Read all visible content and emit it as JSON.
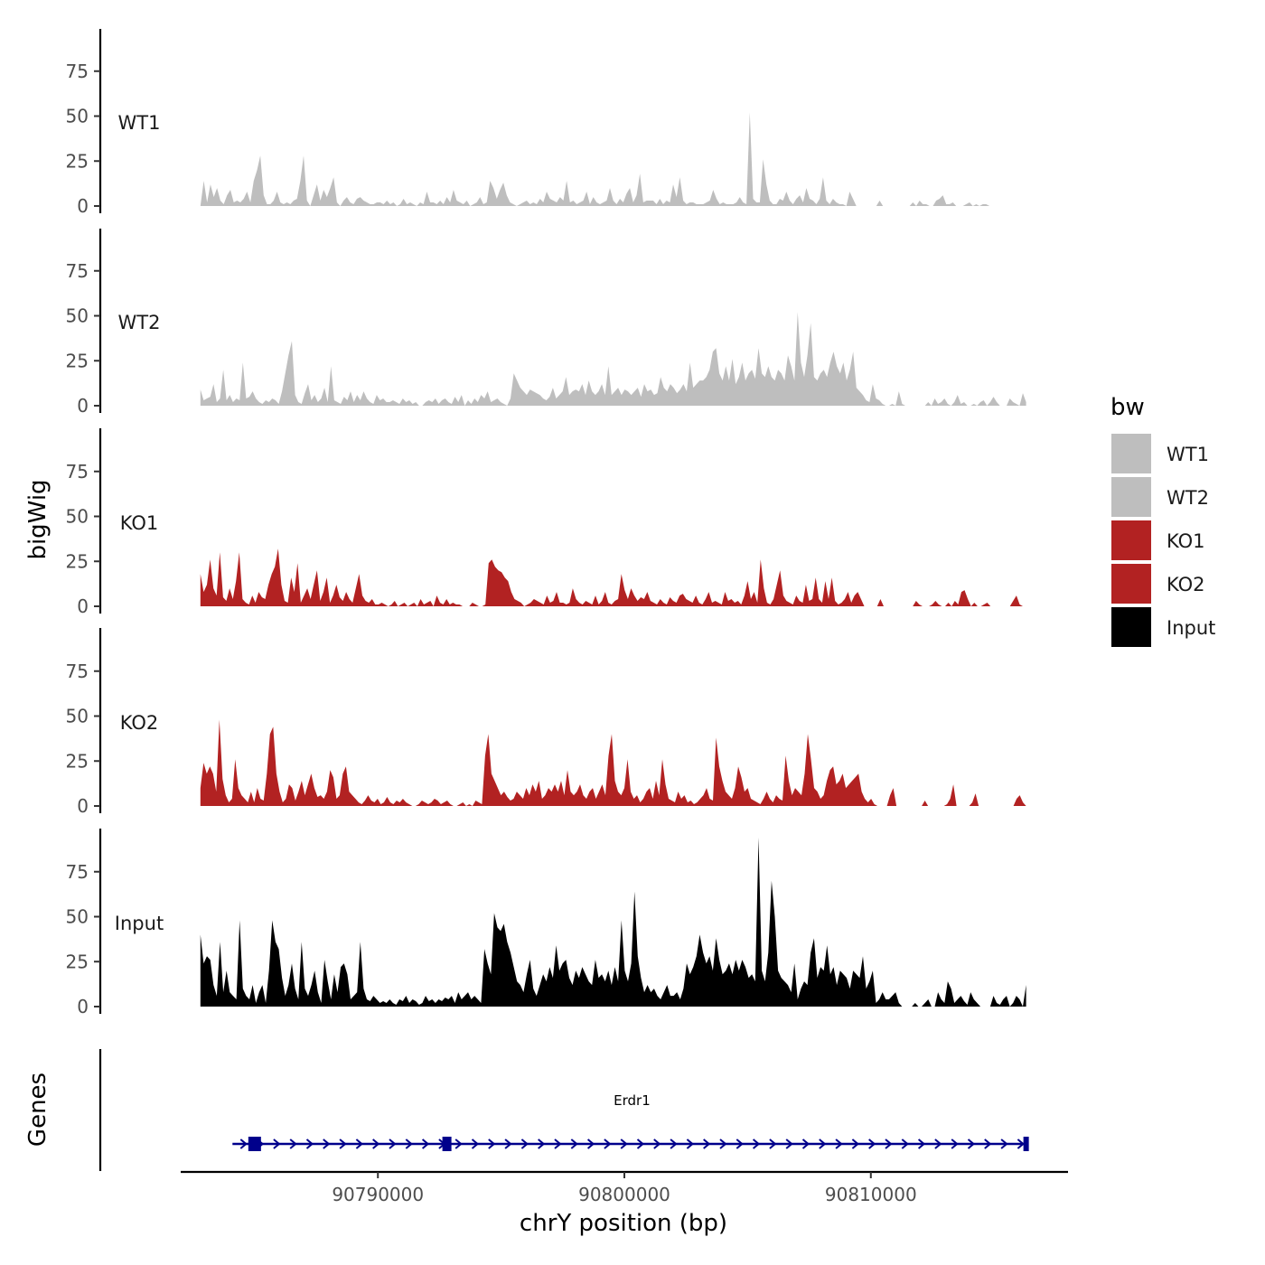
{
  "chart_data": {
    "type": "area",
    "title": "",
    "xlabel": "chrY position (bp)",
    "ylabel": "bigWig",
    "xlim": [
      90782000,
      90818000
    ],
    "x_ticks": [
      90790000,
      90800000,
      90810000
    ],
    "x_tick_labels": [
      "90790000",
      "90800000",
      "90810000"
    ],
    "ylim": [
      0,
      100
    ],
    "y_ticks": [
      0,
      25,
      50,
      75
    ],
    "y_tick_labels": [
      "0",
      "25",
      "50",
      "75"
    ],
    "data_x_range": [
      90782800,
      90816300
    ],
    "colors": {
      "WT1": "#bebebe",
      "WT2": "#bebebe",
      "KO1": "#b22222",
      "KO2": "#b22222",
      "Input": "#000000",
      "gene": "#00008b"
    },
    "series": [
      {
        "name": "WT1",
        "label": "WT1",
        "color": "#bebebe",
        "values": [
          0,
          14,
          2,
          12,
          5,
          10,
          3,
          1,
          6,
          9,
          2,
          3,
          2,
          4,
          8,
          2,
          14,
          20,
          28,
          6,
          1,
          1,
          3,
          8,
          2,
          1,
          2,
          1,
          3,
          4,
          14,
          28,
          3,
          0,
          6,
          12,
          3,
          9,
          5,
          10,
          16,
          2,
          0,
          3,
          5,
          2,
          1,
          4,
          5,
          3,
          2,
          1,
          1,
          2,
          2,
          1,
          3,
          1,
          2,
          0,
          1,
          4,
          1,
          2,
          1,
          0,
          2,
          1,
          8,
          2,
          2,
          1,
          3,
          1,
          5,
          2,
          9,
          3,
          2,
          1,
          3,
          0,
          1,
          2,
          5,
          1,
          2,
          14,
          10,
          4,
          9,
          13,
          6,
          2,
          1,
          0,
          1,
          2,
          3,
          1,
          2,
          1,
          4,
          2,
          8,
          4,
          3,
          2,
          5,
          3,
          14,
          2,
          3,
          1,
          2,
          3,
          8,
          1,
          5,
          2,
          1,
          2,
          3,
          10,
          3,
          1,
          4,
          2,
          7,
          10,
          2,
          6,
          18,
          2,
          3,
          3,
          3,
          1,
          4,
          1,
          3,
          2,
          12,
          5,
          16,
          3,
          1,
          2,
          2,
          1,
          1,
          1,
          2,
          3,
          9,
          4,
          1,
          2,
          1,
          1,
          1,
          2,
          5,
          2,
          1,
          52,
          4,
          2,
          2,
          26,
          12,
          3,
          1,
          1,
          4,
          3,
          8,
          3,
          1,
          4,
          6,
          2,
          10,
          4,
          3,
          1,
          4,
          16,
          3,
          1,
          4,
          2,
          1,
          1,
          0,
          8,
          4,
          0,
          0,
          0,
          0,
          0,
          0,
          0,
          3,
          0,
          0,
          0,
          0,
          0,
          0,
          0,
          0,
          0,
          2,
          0,
          3,
          1,
          1,
          0,
          0,
          3,
          4,
          6,
          1,
          1,
          2,
          0,
          0,
          0,
          1,
          2,
          0,
          1,
          0,
          1,
          1,
          0,
          0,
          0,
          0,
          0,
          0,
          0,
          0,
          0,
          0,
          0,
          0
        ]
      },
      {
        "name": "WT2",
        "label": "WT2",
        "color": "#bebebe",
        "values": [
          9,
          3,
          4,
          5,
          12,
          2,
          4,
          20,
          3,
          6,
          2,
          4,
          3,
          24,
          4,
          5,
          8,
          4,
          2,
          1,
          3,
          2,
          4,
          3,
          1,
          8,
          18,
          28,
          36,
          6,
          2,
          1,
          7,
          12,
          3,
          6,
          2,
          4,
          10,
          2,
          22,
          3,
          2,
          1,
          5,
          3,
          8,
          2,
          6,
          3,
          8,
          4,
          2,
          1,
          6,
          3,
          4,
          2,
          2,
          3,
          2,
          1,
          4,
          2,
          3,
          1,
          2,
          0,
          0,
          2,
          3,
          2,
          4,
          1,
          3,
          4,
          2,
          1,
          5,
          2,
          6,
          0,
          3,
          1,
          4,
          2,
          6,
          4,
          8,
          2,
          3,
          4,
          2,
          1,
          0,
          4,
          18,
          14,
          10,
          8,
          6,
          9,
          8,
          7,
          6,
          4,
          3,
          5,
          10,
          4,
          6,
          8,
          16,
          6,
          8,
          9,
          8,
          12,
          6,
          14,
          8,
          6,
          8,
          12,
          6,
          22,
          6,
          8,
          10,
          6,
          9,
          8,
          6,
          8,
          10,
          5,
          12,
          8,
          9,
          6,
          7,
          16,
          10,
          8,
          12,
          10,
          7,
          9,
          12,
          8,
          24,
          10,
          12,
          14,
          14,
          16,
          20,
          30,
          32,
          18,
          14,
          22,
          14,
          26,
          12,
          16,
          24,
          14,
          18,
          20,
          15,
          32,
          18,
          16,
          22,
          16,
          14,
          20,
          18,
          14,
          28,
          22,
          14,
          52,
          24,
          16,
          28,
          46,
          16,
          14,
          18,
          20,
          16,
          24,
          30,
          22,
          18,
          24,
          14,
          20,
          30,
          10,
          8,
          6,
          3,
          2,
          12,
          4,
          3,
          1,
          0,
          0,
          1,
          0,
          8,
          1,
          0,
          0,
          0,
          0,
          0,
          0,
          0,
          2,
          0,
          4,
          1,
          2,
          4,
          1,
          0,
          2,
          6,
          1,
          2,
          0,
          0,
          1,
          0,
          2,
          3,
          0,
          2,
          5,
          2,
          0,
          0,
          0,
          4,
          2,
          1,
          0,
          7,
          2
        ]
      },
      {
        "name": "KO1",
        "label": "KO1",
        "color": "#b22222",
        "values": [
          18,
          8,
          12,
          26,
          10,
          6,
          30,
          5,
          3,
          10,
          4,
          14,
          30,
          4,
          2,
          1,
          6,
          2,
          8,
          5,
          4,
          12,
          18,
          22,
          32,
          12,
          3,
          2,
          16,
          8,
          24,
          2,
          6,
          10,
          4,
          12,
          20,
          3,
          8,
          16,
          2,
          6,
          12,
          5,
          3,
          8,
          4,
          2,
          10,
          18,
          6,
          3,
          2,
          4,
          1,
          1,
          2,
          1,
          0,
          1,
          3,
          0,
          1,
          2,
          0,
          1,
          2,
          0,
          4,
          1,
          2,
          3,
          0,
          6,
          2,
          1,
          4,
          1,
          2,
          1,
          1,
          0,
          0,
          0,
          2,
          1,
          0,
          0,
          1,
          24,
          26,
          22,
          20,
          19,
          16,
          14,
          8,
          4,
          3,
          2,
          0,
          1,
          2,
          4,
          3,
          2,
          1,
          6,
          2,
          3,
          8,
          2,
          2,
          1,
          2,
          10,
          4,
          2,
          1,
          3,
          2,
          1,
          6,
          1,
          3,
          8,
          2,
          1,
          3,
          4,
          18,
          9,
          4,
          10,
          6,
          3,
          5,
          4,
          8,
          3,
          2,
          1,
          4,
          2,
          1,
          5,
          3,
          2,
          6,
          7,
          4,
          3,
          2,
          6,
          2,
          1,
          4,
          8,
          2,
          3,
          2,
          1,
          8,
          3,
          4,
          2,
          3,
          1,
          6,
          14,
          4,
          8,
          2,
          26,
          10,
          2,
          1,
          4,
          12,
          20,
          6,
          3,
          2,
          1,
          6,
          3,
          2,
          12,
          3,
          4,
          16,
          4,
          2,
          14,
          4,
          16,
          3,
          1,
          2,
          4,
          8,
          2,
          6,
          8,
          4,
          0,
          0,
          0,
          0,
          0,
          4,
          0,
          0,
          0,
          0,
          0,
          0,
          0,
          0,
          0,
          0,
          3,
          1,
          0,
          0,
          0,
          1,
          3,
          1,
          0,
          0,
          2,
          0,
          3,
          1,
          8,
          9,
          4,
          0,
          2,
          0,
          0,
          1,
          2,
          0,
          0,
          0,
          0,
          0,
          0,
          0,
          3,
          6,
          1,
          0,
          0
        ]
      },
      {
        "name": "KO2",
        "label": "KO2",
        "color": "#b22222",
        "values": [
          10,
          24,
          18,
          22,
          18,
          8,
          48,
          15,
          6,
          2,
          4,
          26,
          10,
          6,
          4,
          2,
          8,
          2,
          10,
          4,
          3,
          18,
          40,
          44,
          18,
          8,
          2,
          4,
          12,
          10,
          3,
          8,
          14,
          6,
          12,
          18,
          10,
          5,
          6,
          4,
          8,
          20,
          16,
          4,
          6,
          18,
          22,
          8,
          6,
          4,
          2,
          1,
          3,
          6,
          3,
          2,
          4,
          1,
          2,
          5,
          2,
          1,
          3,
          2,
          4,
          2,
          1,
          0,
          0,
          1,
          3,
          2,
          1,
          2,
          4,
          3,
          1,
          2,
          3,
          1,
          0,
          0,
          1,
          2,
          0,
          1,
          0,
          3,
          2,
          1,
          28,
          40,
          18,
          14,
          10,
          6,
          8,
          5,
          3,
          4,
          8,
          6,
          4,
          10,
          6,
          12,
          8,
          14,
          4,
          6,
          10,
          8,
          12,
          8,
          14,
          6,
          20,
          8,
          6,
          8,
          12,
          6,
          4,
          8,
          10,
          4,
          8,
          12,
          6,
          28,
          40,
          14,
          8,
          6,
          10,
          26,
          8,
          4,
          6,
          2,
          4,
          8,
          10,
          4,
          14,
          6,
          26,
          12,
          4,
          3,
          2,
          8,
          4,
          6,
          2,
          3,
          1,
          2,
          4,
          6,
          10,
          4,
          3,
          38,
          22,
          14,
          8,
          6,
          4,
          10,
          22,
          16,
          8,
          10,
          4,
          3,
          2,
          1,
          4,
          8,
          4,
          2,
          6,
          4,
          3,
          28,
          14,
          6,
          10,
          8,
          6,
          18,
          40,
          26,
          10,
          8,
          4,
          6,
          14,
          20,
          22,
          12,
          14,
          18,
          10,
          12,
          14,
          16,
          18,
          8,
          4,
          2,
          4,
          1,
          0,
          0,
          0,
          0,
          6,
          10,
          0,
          0,
          0,
          0,
          0,
          0,
          0,
          0,
          0,
          3,
          0,
          0,
          0,
          0,
          0,
          0,
          1,
          4,
          12,
          0,
          0,
          0,
          0,
          0,
          2,
          7,
          0,
          0,
          0,
          0,
          0,
          0,
          0,
          0,
          0,
          0,
          0,
          0,
          4,
          6,
          2,
          0
        ]
      },
      {
        "name": "Input",
        "label": "Input",
        "color": "#000000",
        "values": [
          40,
          24,
          28,
          26,
          12,
          6,
          36,
          8,
          20,
          8,
          6,
          4,
          48,
          10,
          6,
          4,
          12,
          2,
          8,
          12,
          2,
          20,
          48,
          36,
          32,
          16,
          6,
          12,
          24,
          10,
          4,
          36,
          10,
          6,
          12,
          20,
          8,
          2,
          26,
          14,
          4,
          18,
          8,
          22,
          24,
          18,
          4,
          6,
          8,
          36,
          10,
          4,
          3,
          6,
          4,
          2,
          3,
          2,
          4,
          2,
          1,
          4,
          3,
          6,
          2,
          4,
          3,
          1,
          2,
          6,
          3,
          4,
          2,
          4,
          3,
          5,
          4,
          6,
          2,
          8,
          4,
          6,
          8,
          4,
          6,
          4,
          2,
          32,
          24,
          18,
          52,
          44,
          42,
          46,
          36,
          30,
          22,
          14,
          12,
          8,
          18,
          26,
          10,
          6,
          12,
          18,
          14,
          22,
          16,
          34,
          20,
          24,
          26,
          16,
          12,
          20,
          16,
          22,
          18,
          14,
          12,
          26,
          16,
          18,
          14,
          20,
          12,
          22,
          14,
          48,
          20,
          14,
          24,
          64,
          28,
          16,
          8,
          12,
          8,
          10,
          6,
          4,
          8,
          12,
          6,
          6,
          8,
          4,
          10,
          24,
          18,
          22,
          28,
          40,
          30,
          24,
          28,
          20,
          38,
          26,
          18,
          20,
          24,
          18,
          26,
          20,
          26,
          22,
          16,
          18,
          14,
          94,
          20,
          14,
          30,
          70,
          50,
          20,
          16,
          14,
          12,
          8,
          24,
          4,
          10,
          14,
          12,
          30,
          38,
          16,
          22,
          20,
          34,
          18,
          22,
          12,
          20,
          18,
          16,
          10,
          20,
          18,
          16,
          28,
          10,
          14,
          20,
          2,
          4,
          8,
          4,
          4,
          6,
          8,
          2,
          0,
          0,
          0,
          0,
          2,
          0,
          0,
          2,
          4,
          0,
          0,
          8,
          4,
          2,
          14,
          10,
          2,
          4,
          6,
          3,
          1,
          8,
          4,
          2,
          0,
          0,
          0,
          0,
          6,
          2,
          1,
          4,
          6,
          0,
          2,
          6,
          4,
          0,
          12
        ]
      }
    ],
    "legend": {
      "title": "bw",
      "position": "right",
      "entries": [
        "WT1",
        "WT2",
        "KO1",
        "KO2",
        "Input"
      ]
    },
    "genes_panel": {
      "ylabel": "Genes",
      "genes": [
        {
          "name": "Erdr1",
          "start": 90784100,
          "end": 90816300,
          "exons": [
            90785000,
            90792800,
            90816300
          ],
          "strand": "+"
        }
      ]
    }
  }
}
